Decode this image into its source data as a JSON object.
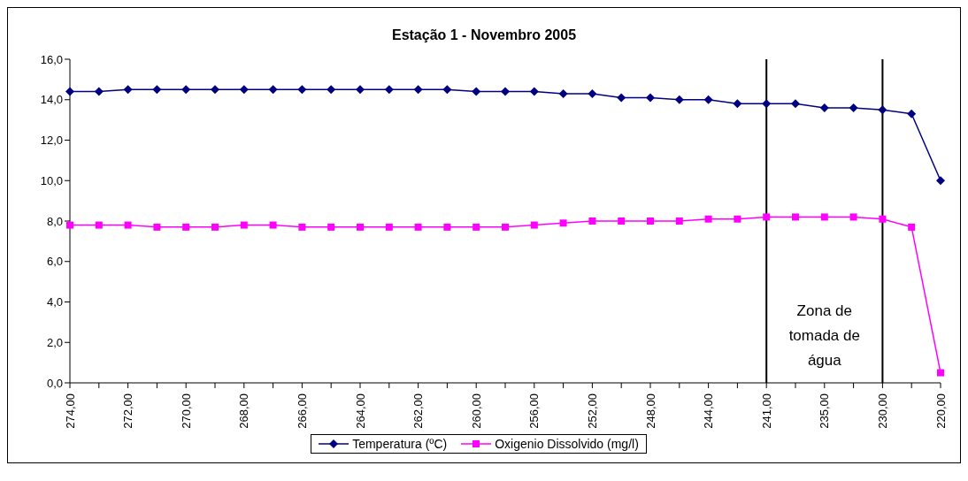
{
  "chart_data": {
    "type": "line",
    "title": "Estação 1 - Novembro 2005",
    "categories": [
      "274,00",
      null,
      "272,00",
      null,
      "270,00",
      null,
      "268,00",
      null,
      "266,00",
      null,
      "264,00",
      null,
      "262,00",
      null,
      "260,00",
      null,
      "256,00",
      null,
      "252,00",
      null,
      "248,00",
      null,
      "244,00",
      null,
      "241,00",
      null,
      "235,00",
      null,
      "230,00",
      null,
      "220,00"
    ],
    "series": [
      {
        "name": "Temperatura (ºC)",
        "color": "#000080",
        "marker": "diamond",
        "values": [
          14.4,
          14.4,
          14.5,
          14.5,
          14.5,
          14.5,
          14.5,
          14.5,
          14.5,
          14.5,
          14.5,
          14.5,
          14.5,
          14.5,
          14.4,
          14.4,
          14.4,
          14.3,
          14.3,
          14.1,
          14.1,
          14.0,
          14.0,
          13.8,
          13.8,
          13.8,
          13.6,
          13.6,
          13.5,
          13.3,
          10.0
        ]
      },
      {
        "name": "Oxigenio Dissolvido (mg/l)",
        "color": "#ff00ff",
        "marker": "square",
        "values": [
          7.8,
          7.8,
          7.8,
          7.7,
          7.7,
          7.7,
          7.8,
          7.8,
          7.7,
          7.7,
          7.7,
          7.7,
          7.7,
          7.7,
          7.7,
          7.7,
          7.8,
          7.9,
          8.0,
          8.0,
          8.0,
          8.0,
          8.1,
          8.1,
          8.2,
          8.2,
          8.2,
          8.2,
          8.1,
          7.7,
          0.5
        ]
      }
    ],
    "ylim": [
      0,
      16
    ],
    "yticks": [
      {
        "value": 0,
        "label": "0,0"
      },
      {
        "value": 2,
        "label": "2,0"
      },
      {
        "value": 4,
        "label": "4,0"
      },
      {
        "value": 6,
        "label": "6,0"
      },
      {
        "value": 8,
        "label": "8,0"
      },
      {
        "value": 10,
        "label": "10,0"
      },
      {
        "value": 12,
        "label": "12,0"
      },
      {
        "value": 14,
        "label": "14,0"
      },
      {
        "value": 16,
        "label": "16,0"
      }
    ],
    "ref_lines": [
      {
        "axis": "x",
        "value": "241,00",
        "color": "#000000"
      },
      {
        "axis": "x",
        "value": "230,00",
        "color": "#000000"
      }
    ],
    "annotations": [
      "Zona de tomada de água"
    ],
    "legend": "bottom",
    "line_style": "solid"
  }
}
